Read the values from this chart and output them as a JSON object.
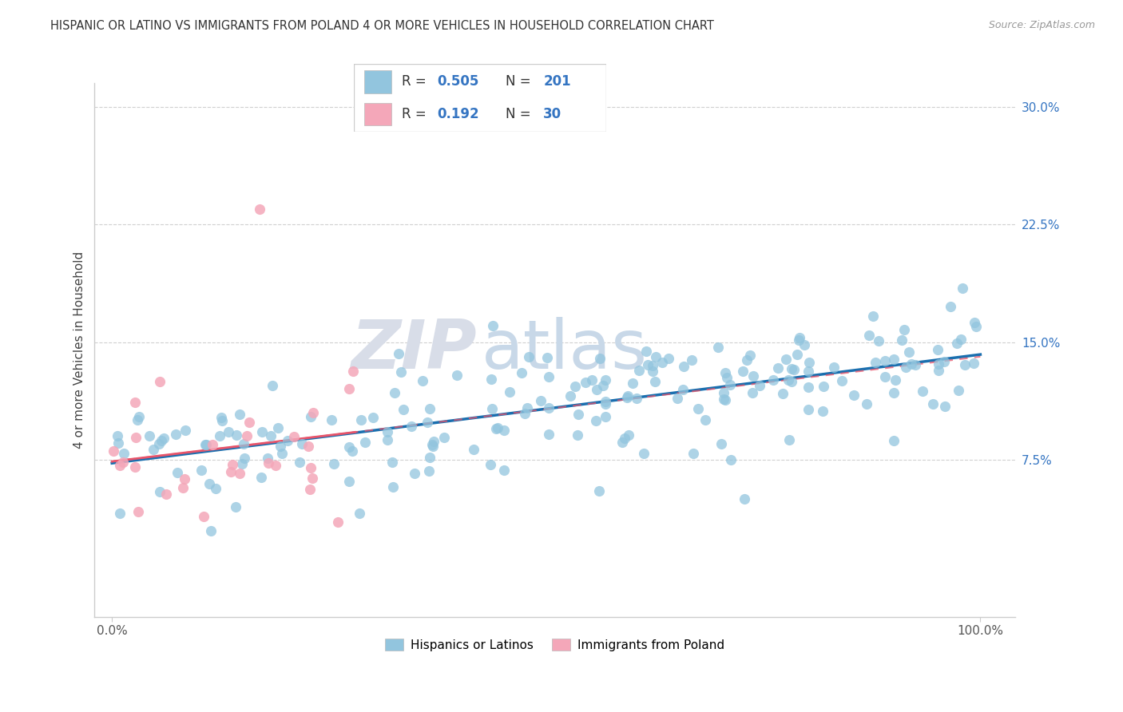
{
  "title": "HISPANIC OR LATINO VS IMMIGRANTS FROM POLAND 4 OR MORE VEHICLES IN HOUSEHOLD CORRELATION CHART",
  "source": "Source: ZipAtlas.com",
  "ylabel": "4 or more Vehicles in Household",
  "yticks": [
    "7.5%",
    "15.0%",
    "22.5%",
    "30.0%"
  ],
  "ytick_values": [
    0.075,
    0.15,
    0.225,
    0.3
  ],
  "ymax": 0.315,
  "ymin": -0.025,
  "xmax": 1.04,
  "xmin": -0.02,
  "color_blue": "#92c5de",
  "color_pink": "#f4a7b9",
  "color_blue_line": "#1a6faf",
  "color_pink_line": "#e8546a",
  "color_blue_text": "#3575c2",
  "color_ytick": "#3575c2",
  "watermark1": "ZIP",
  "watermark2": "atlas",
  "legend_border": "#cccccc",
  "grid_color": "#d0d0d0",
  "spine_color": "#cccccc"
}
